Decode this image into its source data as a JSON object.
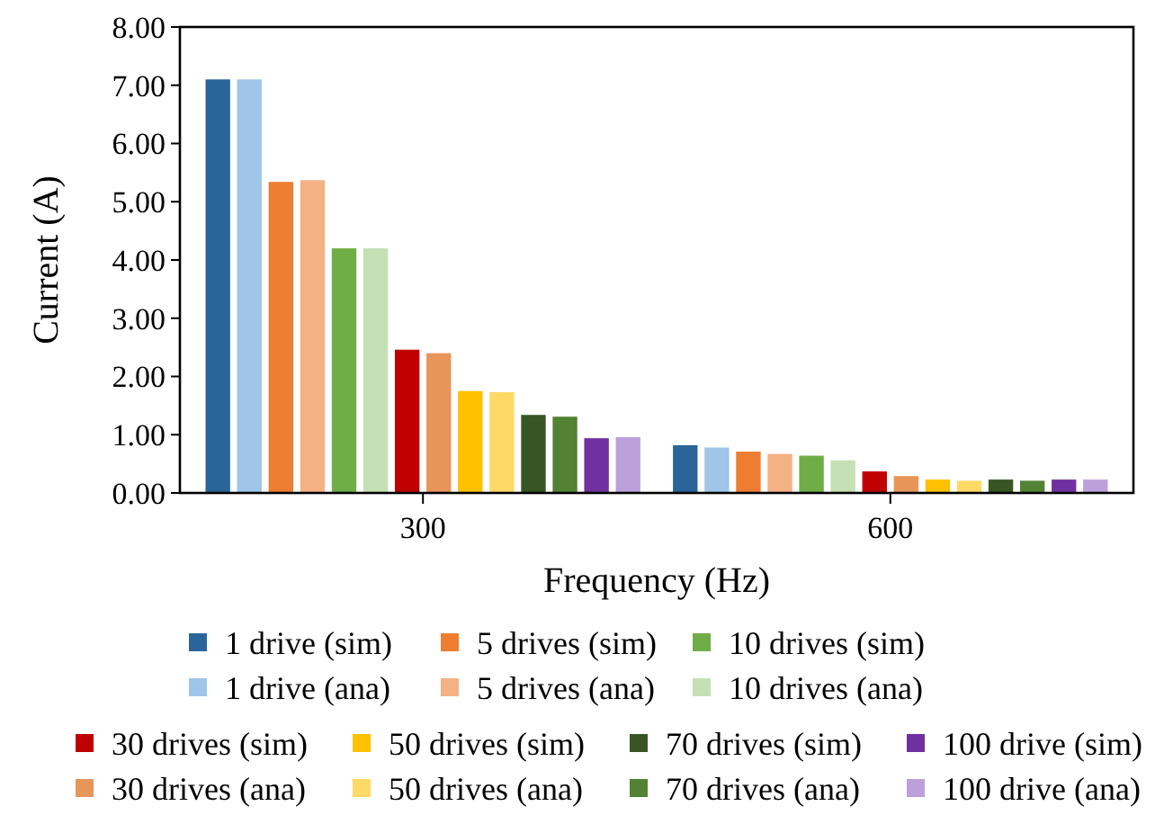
{
  "chart_data": {
    "type": "bar",
    "xlabel": "Frequency (Hz)",
    "ylabel": "Current (A)",
    "categories": [
      "300",
      "600"
    ],
    "series": [
      {
        "name": "1 drive (sim)",
        "color": "#2a6599",
        "values": [
          7.1,
          0.82
        ]
      },
      {
        "name": "1 drive (ana)",
        "color": "#9fc5e8",
        "values": [
          7.1,
          0.78
        ]
      },
      {
        "name": "5 drives (sim)",
        "color": "#ed7d31",
        "values": [
          5.34,
          0.71
        ]
      },
      {
        "name": "5 drives (ana)",
        "color": "#f4b183",
        "values": [
          5.37,
          0.67
        ]
      },
      {
        "name": "10 drives (sim)",
        "color": "#70ad47",
        "values": [
          4.2,
          0.64
        ]
      },
      {
        "name": "10 drives (ana)",
        "color": "#c5e0b4",
        "values": [
          4.2,
          0.56
        ]
      },
      {
        "name": "30 drives (sim)",
        "color": "#c00000",
        "values": [
          2.46,
          0.37
        ]
      },
      {
        "name": "30 drives (ana)",
        "color": "#e8955a",
        "values": [
          2.4,
          0.29
        ]
      },
      {
        "name": "50 drives (sim)",
        "color": "#ffc000",
        "values": [
          1.75,
          0.23
        ]
      },
      {
        "name": "50 drives (ana)",
        "color": "#ffd966",
        "values": [
          1.73,
          0.21
        ]
      },
      {
        "name": "70 drives (sim)",
        "color": "#375623",
        "values": [
          1.34,
          0.23
        ]
      },
      {
        "name": "70 drives (ana)",
        "color": "#548235",
        "values": [
          1.31,
          0.21
        ]
      },
      {
        "name": "100 drive (sim)",
        "color": "#7030a0",
        "values": [
          0.94,
          0.23
        ]
      },
      {
        "name": "100 drive (ana)",
        "color": "#bca0dc",
        "values": [
          0.96,
          0.23
        ]
      }
    ],
    "ylim": [
      0,
      8
    ],
    "yticks": [
      {
        "value": 0,
        "label": "0.00"
      },
      {
        "value": 1,
        "label": "1.00"
      },
      {
        "value": 2,
        "label": "2.00"
      },
      {
        "value": 3,
        "label": "3.00"
      },
      {
        "value": 4,
        "label": "4.00"
      },
      {
        "value": 5,
        "label": "5.00"
      },
      {
        "value": 6,
        "label": "6.00"
      },
      {
        "value": 7,
        "label": "7.00"
      },
      {
        "value": 8,
        "label": "8.00"
      }
    ],
    "legend": "bottom"
  }
}
